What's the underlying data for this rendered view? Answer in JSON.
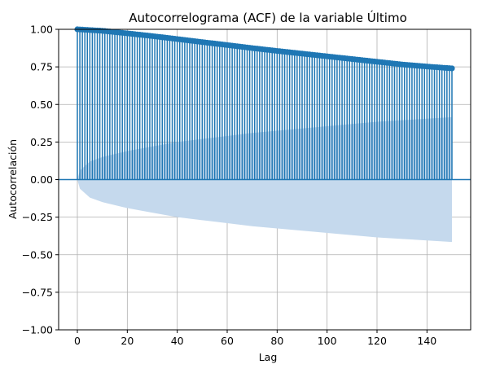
{
  "chart_data": {
    "type": "stem",
    "title": "Autocorrelograma (ACF) de la variable Último",
    "xlabel": "Lag",
    "ylabel": "Autocorrelación",
    "xlim": [
      -7.5,
      157.5
    ],
    "ylim": [
      -1.0,
      1.0
    ],
    "xticks": [
      0,
      20,
      40,
      60,
      80,
      100,
      120,
      140
    ],
    "yticks": [
      -1.0,
      -0.75,
      -0.5,
      -0.25,
      0.0,
      0.25,
      0.5,
      0.75,
      1.0
    ],
    "xtick_labels": [
      "0",
      "20",
      "40",
      "60",
      "80",
      "100",
      "120",
      "140"
    ],
    "ytick_labels": [
      "−1.00",
      "−0.75",
      "−0.50",
      "−0.25",
      "0.00",
      "0.25",
      "0.50",
      "0.75",
      "1.00"
    ],
    "grid": true,
    "lags": {
      "start": 0,
      "end": 150
    },
    "acf_points": [
      [
        0,
        1.0
      ],
      [
        10,
        0.99
      ],
      [
        20,
        0.973
      ],
      [
        30,
        0.955
      ],
      [
        40,
        0.935
      ],
      [
        50,
        0.915
      ],
      [
        60,
        0.895
      ],
      [
        70,
        0.875
      ],
      [
        80,
        0.856
      ],
      [
        90,
        0.838
      ],
      [
        100,
        0.82
      ],
      [
        110,
        0.802
      ],
      [
        120,
        0.784
      ],
      [
        130,
        0.766
      ],
      [
        140,
        0.752
      ],
      [
        150,
        0.74
      ]
    ],
    "confidence_band": [
      [
        0,
        0.0
      ],
      [
        1,
        0.06
      ],
      [
        5,
        0.12
      ],
      [
        10,
        0.15
      ],
      [
        20,
        0.19
      ],
      [
        30,
        0.22
      ],
      [
        40,
        0.25
      ],
      [
        50,
        0.27
      ],
      [
        60,
        0.29
      ],
      [
        70,
        0.31
      ],
      [
        80,
        0.325
      ],
      [
        90,
        0.34
      ],
      [
        100,
        0.355
      ],
      [
        110,
        0.37
      ],
      [
        120,
        0.385
      ],
      [
        130,
        0.395
      ],
      [
        140,
        0.405
      ],
      [
        150,
        0.415
      ]
    ],
    "colors": {
      "stem": "#1f77b4",
      "band": "#c5d9ed",
      "grid": "#b0b0b0",
      "zero_line": "#1f77b4"
    }
  }
}
